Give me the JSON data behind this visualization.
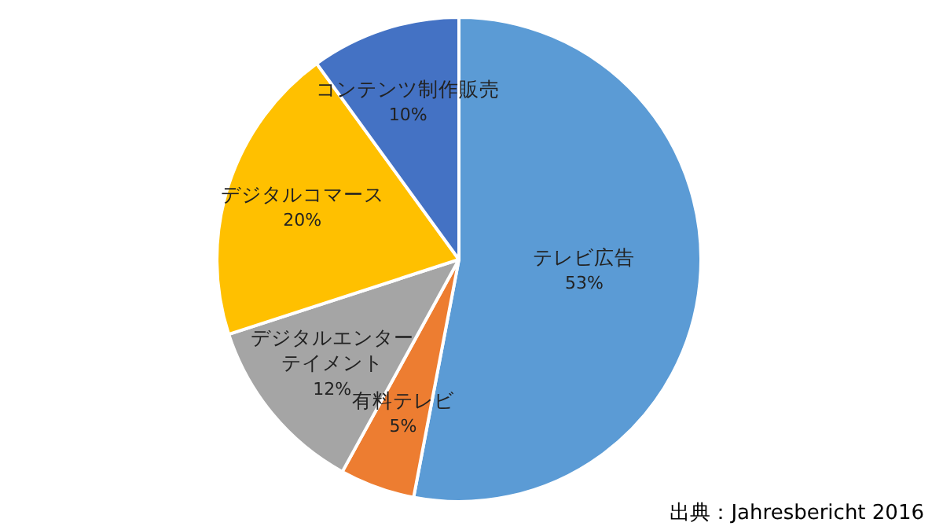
{
  "chart_data": {
    "type": "pie",
    "categories": [
      "テレビ広告",
      "有料テレビ",
      "デジタルエンターテイメント",
      "デジタルコマース",
      "コンテンツ制作販売"
    ],
    "values": [
      53,
      5,
      12,
      20,
      10
    ],
    "colors": [
      "#5b9bd5",
      "#ed7d31",
      "#a5a5a5",
      "#ffc000",
      "#4472c4"
    ],
    "value_labels": [
      "53%",
      "5%",
      "12%",
      "20%",
      "10%"
    ],
    "legend": false,
    "annotations": [
      "出典：Jahresbericht 2016"
    ]
  }
}
